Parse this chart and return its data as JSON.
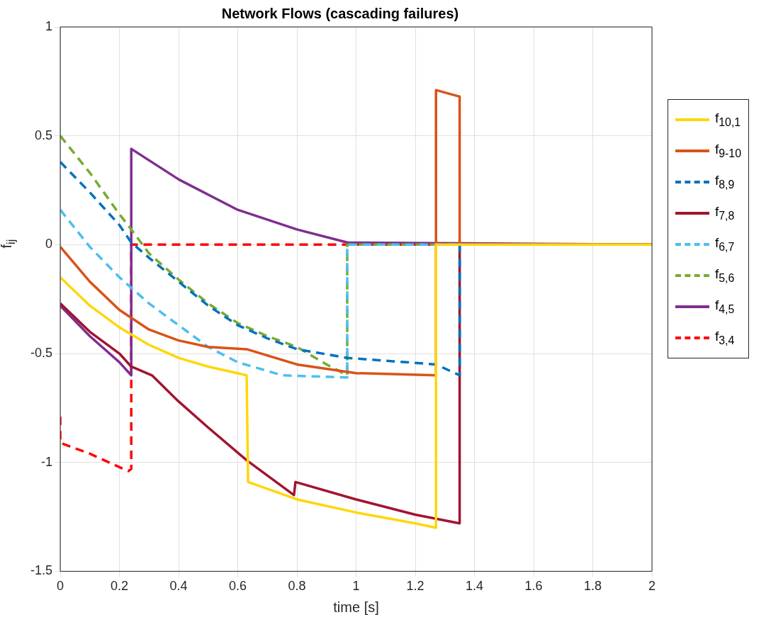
{
  "chart_data": {
    "type": "line",
    "title": "Network Flows (cascading failures)",
    "xlabel": "time [s]",
    "ylabel": "f$_{ij}$",
    "xlim": [
      0,
      2
    ],
    "xticks": [
      0,
      0.2,
      0.4,
      0.6,
      0.8,
      1,
      1.2,
      1.4,
      1.6,
      1.8,
      2
    ],
    "ylim": [
      -1.5,
      1
    ],
    "yticks": [
      -1.5,
      -1,
      -0.5,
      0,
      0.5,
      1
    ],
    "grid": true,
    "legend": "right",
    "marker": "none",
    "series": [
      {
        "name": "f$_{10,1}$",
        "color": "#ffd60a",
        "line_style": "solid",
        "x": [
          0,
          0.1,
          0.2,
          0.3,
          0.4,
          0.5,
          0.63,
          0.635,
          0.8,
          1.0,
          1.2,
          1.27,
          1.27,
          2
        ],
        "values": [
          -0.15,
          -0.28,
          -0.38,
          -0.46,
          -0.52,
          -0.56,
          -0.6,
          -1.09,
          -1.17,
          -1.23,
          -1.28,
          -1.3,
          0,
          0
        ]
      },
      {
        "name": "f$_{9-10}$",
        "color": "#d95319",
        "line_style": "solid",
        "x": [
          0,
          0.1,
          0.2,
          0.3,
          0.4,
          0.5,
          0.63,
          0.8,
          1.0,
          1.27,
          1.27,
          1.35,
          1.35,
          2
        ],
        "values": [
          -0.01,
          -0.17,
          -0.3,
          -0.39,
          -0.44,
          -0.47,
          -0.48,
          -0.55,
          -0.59,
          -0.6,
          0.71,
          0.68,
          0,
          0
        ]
      },
      {
        "name": "f$_{8,9}$",
        "color": "#0072bd",
        "line_style": "dashed",
        "x": [
          0,
          0.1,
          0.2,
          0.24,
          0.3,
          0.4,
          0.5,
          0.6,
          0.7,
          0.8,
          0.97,
          1.27,
          1.35,
          1.35,
          2
        ],
        "values": [
          0.38,
          0.24,
          0.09,
          0.01,
          -0.06,
          -0.17,
          -0.28,
          -0.37,
          -0.43,
          -0.48,
          -0.52,
          -0.55,
          -0.6,
          0,
          0
        ]
      },
      {
        "name": "f$_{7,8}$",
        "color": "#a2142f",
        "line_style": "solid",
        "x": [
          0,
          0.1,
          0.2,
          0.24,
          0.31,
          0.4,
          0.5,
          0.63,
          0.79,
          0.795,
          1.0,
          1.2,
          1.35,
          1.35,
          2
        ],
        "values": [
          -0.27,
          -0.4,
          -0.5,
          -0.56,
          -0.6,
          -0.72,
          -0.84,
          -0.99,
          -1.15,
          -1.09,
          -1.17,
          -1.24,
          -1.28,
          0,
          0
        ]
      },
      {
        "name": "f$_{6,7}$",
        "color": "#4dbeee",
        "line_style": "dashed",
        "x": [
          0,
          0.1,
          0.2,
          0.3,
          0.4,
          0.5,
          0.6,
          0.75,
          0.97,
          0.97,
          2
        ],
        "values": [
          0.16,
          -0.01,
          -0.15,
          -0.27,
          -0.37,
          -0.47,
          -0.54,
          -0.6,
          -0.61,
          0,
          0
        ]
      },
      {
        "name": "f$_{5,6}$",
        "color": "#77ac30",
        "line_style": "dashed",
        "x": [
          0,
          0.1,
          0.2,
          0.24,
          0.3,
          0.4,
          0.5,
          0.6,
          0.7,
          0.8,
          0.9,
          0.97,
          0.97,
          2
        ],
        "values": [
          0.5,
          0.33,
          0.14,
          0.07,
          -0.04,
          -0.16,
          -0.27,
          -0.36,
          -0.42,
          -0.47,
          -0.55,
          -0.6,
          0,
          0
        ]
      },
      {
        "name": "f$_{4,5}$",
        "color": "#7e2f8e",
        "line_style": "solid",
        "x": [
          0,
          0.1,
          0.2,
          0.24,
          0.24,
          0.4,
          0.6,
          0.8,
          0.97,
          2
        ],
        "values": [
          -0.28,
          -0.42,
          -0.54,
          -0.6,
          0.44,
          0.3,
          0.16,
          0.07,
          0.01,
          0
        ]
      },
      {
        "name": "f$_{3,4}$",
        "color": "#ff0000",
        "line_style": "dashed",
        "x": [
          0,
          0,
          0.1,
          0.23,
          0.24,
          0.24,
          2
        ],
        "values": [
          -0.79,
          -0.91,
          -0.96,
          -1.04,
          -1.03,
          0,
          0
        ]
      }
    ]
  }
}
